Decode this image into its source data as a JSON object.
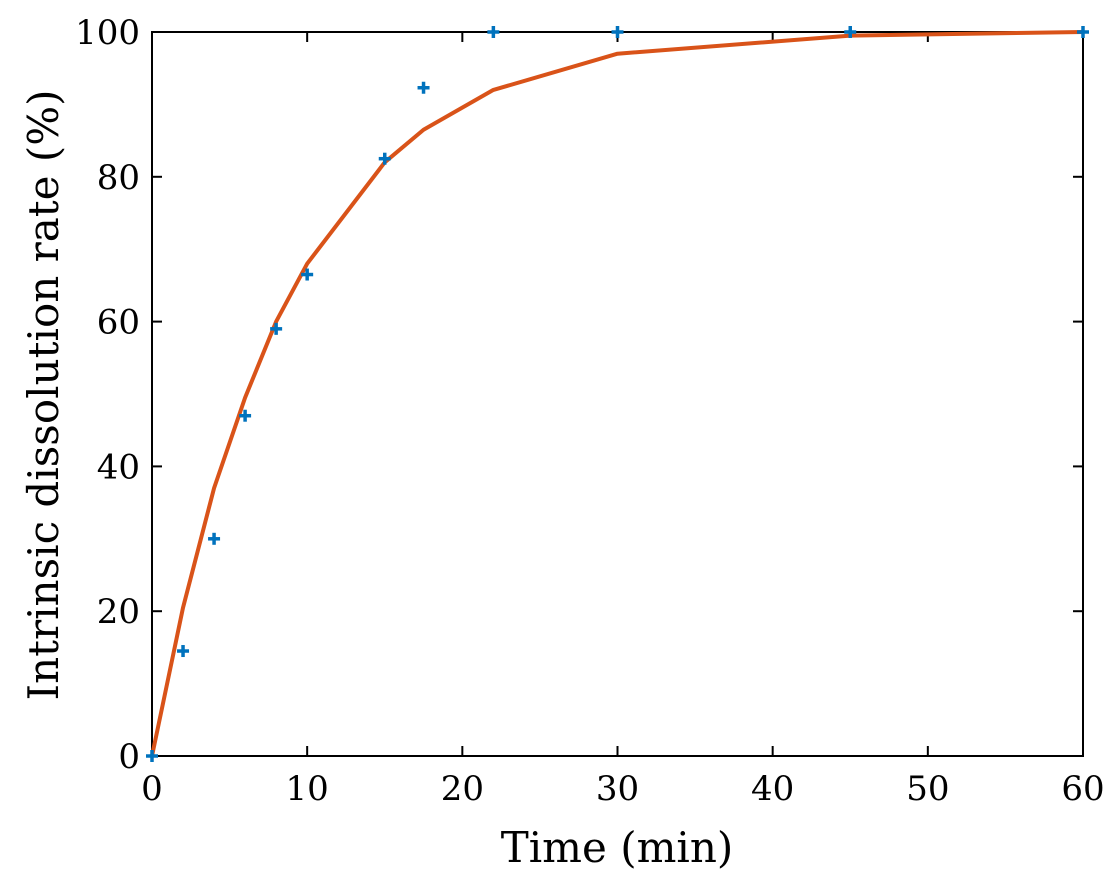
{
  "chart_data": {
    "type": "scatter",
    "xlabel": "Time (min)",
    "ylabel": "Intrinsic dissolution rate (%)",
    "xlim": [
      0,
      60
    ],
    "ylim": [
      0,
      100
    ],
    "xticks": [
      0,
      10,
      20,
      30,
      40,
      50,
      60
    ],
    "yticks": [
      0,
      20,
      40,
      60,
      80,
      100
    ],
    "grid": false,
    "series": [
      {
        "kind": "markers",
        "marker": "plus",
        "color": "#0072BD",
        "x": [
          0,
          2,
          4,
          6,
          8,
          10,
          15,
          17.5,
          22,
          30,
          45,
          60
        ],
        "y": [
          0,
          14.5,
          30,
          47,
          59,
          66.5,
          82.5,
          92.3,
          100,
          100,
          100,
          100
        ]
      },
      {
        "kind": "line",
        "color": "#D95319",
        "x": [
          0,
          2,
          4,
          6,
          8,
          10,
          15,
          17.5,
          22,
          30,
          45,
          60
        ],
        "y": [
          0,
          20.5,
          37,
          49.5,
          60,
          68,
          82,
          86.5,
          92,
          97,
          99.5,
          100
        ]
      }
    ]
  }
}
